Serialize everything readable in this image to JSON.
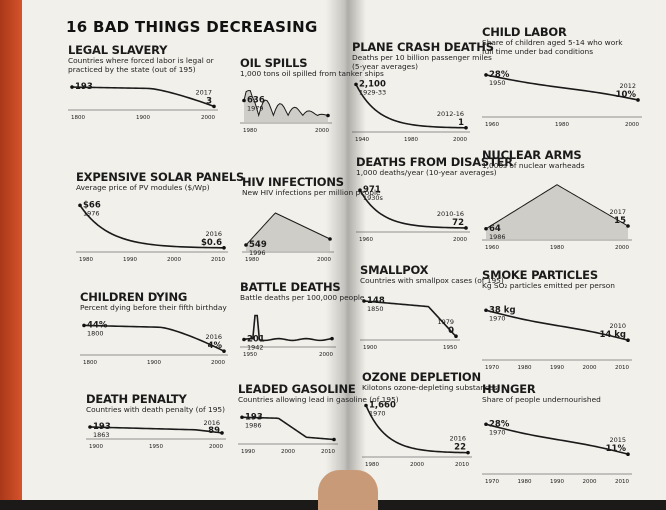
{
  "page_title": "16 BAD THINGS DECREASING",
  "colors": {
    "book_cover": "#d9562b",
    "paper": "#f2f0ea",
    "ink": "#1a1a1a",
    "skin": "#c99a78"
  },
  "panels": [
    {
      "id": "legal-slavery",
      "title": "LEGAL SLAVERY",
      "subtitle": "Countries where forced labor is legal or",
      "subtitle2": "practiced by the state (out of 195)",
      "start_value": "193",
      "start_year": "",
      "end_value": "3",
      "end_year": "2017",
      "ticks": [
        "1800",
        "1900",
        "2000"
      ]
    },
    {
      "id": "oil-spills",
      "title": "OIL SPILLS",
      "subtitle": "1,000 tons oil spilled from tanker ships",
      "subtitle2": "",
      "start_value": "636",
      "start_year": "1979",
      "end_value": "",
      "end_year": "",
      "ticks": [
        "1980",
        "2000"
      ]
    },
    {
      "id": "expensive-solar-panels",
      "title": "EXPENSIVE SOLAR PANELS",
      "subtitle": "Average price of PV modules ($/Wp)",
      "subtitle2": "",
      "start_value": "$66",
      "start_year": "1976",
      "end_value": "$0.6",
      "end_year": "2016",
      "ticks": [
        "1980",
        "1990",
        "2000",
        "2010"
      ]
    },
    {
      "id": "hiv-infections",
      "title": "HIV INFECTIONS",
      "subtitle": "New HIV infections per million people",
      "subtitle2": "",
      "start_value": "549",
      "start_year": "1996",
      "end_value": "",
      "end_year": "",
      "ticks": [
        "1980",
        "2000"
      ]
    },
    {
      "id": "children-dying",
      "title": "CHILDREN DYING",
      "subtitle": "Percent dying before their fifth birthday",
      "subtitle2": "",
      "start_value": "44%",
      "start_year": "1800",
      "end_value": "4%",
      "end_year": "2016",
      "ticks": [
        "1800",
        "1900",
        "2000"
      ]
    },
    {
      "id": "battle-deaths",
      "title": "BATTLE DEATHS",
      "subtitle": "Battle deaths per 100,000 people",
      "subtitle2": "",
      "start_value": "201",
      "start_year": "1942",
      "end_value": "",
      "end_year": "",
      "ticks": [
        "1950",
        "2000"
      ]
    },
    {
      "id": "death-penalty",
      "title": "DEATH PENALTY",
      "subtitle": "Countries with death penalty (of 195)",
      "subtitle2": "",
      "start_value": "193",
      "start_year": "1863",
      "end_value": "89",
      "end_year": "2016",
      "ticks": [
        "1900",
        "1950",
        "2000"
      ]
    },
    {
      "id": "leaded-gasoline",
      "title": "LEADED GASOLINE",
      "subtitle": "Countries allowing lead in gasoline (of 195)",
      "subtitle2": "",
      "start_value": "193",
      "start_year": "1986",
      "end_value": "",
      "end_year": "",
      "ticks": [
        "1990",
        "2000",
        "2010"
      ]
    },
    {
      "id": "plane-crash-deaths",
      "title": "PLANE CRASH DEATHS",
      "subtitle": "Deaths per 10 billion passenger miles",
      "subtitle2": "(5-year averages)",
      "start_value": "2,100",
      "start_year": "1929-33",
      "end_value": "1",
      "end_year": "2012-16",
      "ticks": [
        "1940",
        "1980",
        "2000"
      ]
    },
    {
      "id": "child-labor",
      "title": "CHILD LABOR",
      "subtitle": "Share of children aged 5-14 who work",
      "subtitle2": "full time under bad conditions",
      "start_value": "28%",
      "start_year": "1950",
      "end_value": "10%",
      "end_year": "2012",
      "ticks": [
        "1960",
        "1980",
        "2000"
      ]
    },
    {
      "id": "deaths-from-disaster",
      "title": "DEATHS FROM DISASTER",
      "subtitle": "1,000 deaths/year (10-year averages)",
      "subtitle2": "",
      "start_value": "971",
      "start_year": "1930s",
      "end_value": "72",
      "end_year": "2010-16",
      "ticks": [
        "1960",
        "2000"
      ]
    },
    {
      "id": "nuclear-arms",
      "title": "NUCLEAR ARMS",
      "subtitle": "1,000s of nuclear warheads",
      "subtitle2": "",
      "start_value": "64",
      "start_year": "1986",
      "end_value": "15",
      "end_year": "2017",
      "ticks": [
        "1960",
        "1980",
        "2000"
      ]
    },
    {
      "id": "smallpox",
      "title": "SMALLPOX",
      "subtitle": "Countries with smallpox cases (of 195)",
      "subtitle2": "",
      "start_value": "148",
      "start_year": "1850",
      "end_value": "0",
      "end_year": "1979",
      "ticks": [
        "1900",
        "1950"
      ]
    },
    {
      "id": "smoke-particles",
      "title": "SMOKE PARTICLES",
      "subtitle": "Kg SO₂ particles emitted per person",
      "subtitle2": "",
      "start_value": "38 kg",
      "start_year": "1970",
      "end_value": "14 kg",
      "end_year": "2010",
      "ticks": [
        "1970",
        "1980",
        "1990",
        "2000",
        "2010"
      ]
    },
    {
      "id": "ozone-depletion",
      "title": "OZONE DEPLETION",
      "subtitle": "Kilotons ozone-depleting substances",
      "subtitle2": "",
      "start_value": "1,660",
      "start_year": "1970",
      "end_value": "22",
      "end_year": "2016",
      "ticks": [
        "1980",
        "2000",
        "2010"
      ]
    },
    {
      "id": "hunger",
      "title": "HUNGER",
      "subtitle": "Share of people undernourished",
      "subtitle2": "",
      "start_value": "28%",
      "start_year": "1970",
      "end_value": "11%",
      "end_year": "2015",
      "ticks": [
        "1970",
        "1980",
        "1990",
        "2000",
        "2010"
      ]
    }
  ]
}
